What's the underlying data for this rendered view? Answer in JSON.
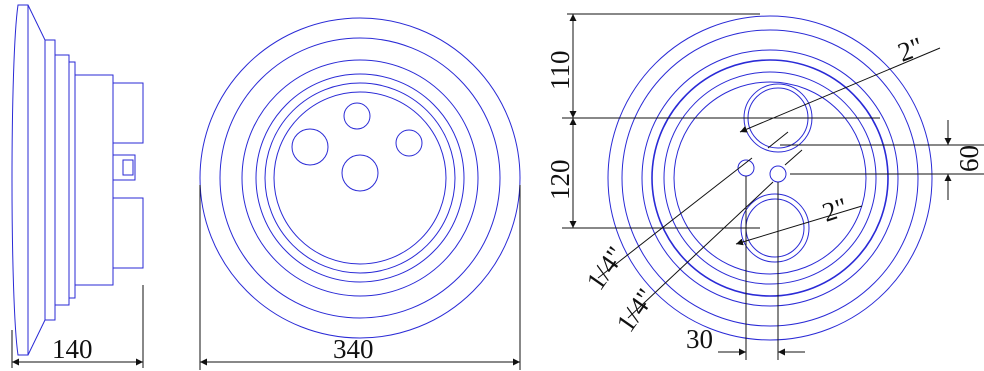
{
  "side_view": {
    "width_label": "140"
  },
  "front_view": {
    "diameter_label": "340"
  },
  "rear_view": {
    "top_offset_label": "110",
    "port_spacing_label": "120",
    "offset_label": "60",
    "large_port_top_label": "2\"",
    "large_port_bottom_label": "2\"",
    "small_port_a_label": "1/4\"",
    "small_port_b_label": "1/4\"",
    "small_port_spacing_label": "30"
  },
  "colors": {
    "outline": "#2a2ad6",
    "dimension": "#111111"
  }
}
